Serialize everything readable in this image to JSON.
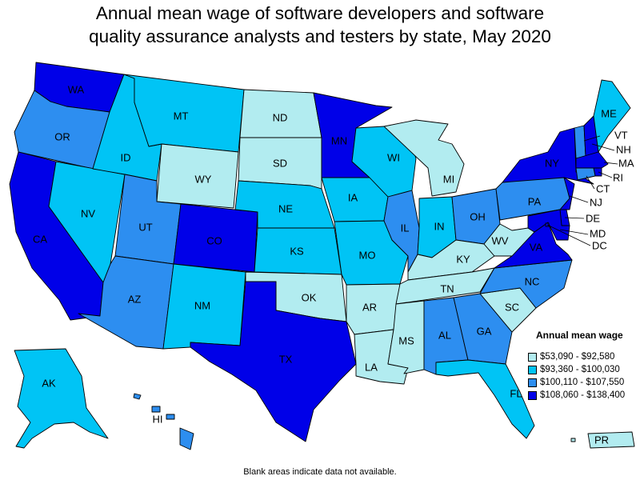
{
  "title": "Annual mean wage of software developers and software\nquality assurance analysts and testers by state, May 2020",
  "legend": {
    "title": "Annual mean wage",
    "items": [
      {
        "label": "$53,090 - $92,580",
        "color": "#b2ecf0"
      },
      {
        "label": "$93,360 - $100,030",
        "color": "#00c4f5"
      },
      {
        "label": "$100,110 - $107,550",
        "color": "#2d8ef0"
      },
      {
        "label": "$108,060 - $138,400",
        "color": "#0000e8"
      }
    ]
  },
  "footnote": "Blank areas indicate data not available.",
  "states": {
    "WA": 4,
    "OR": 3,
    "CA": 4,
    "NV": 2,
    "ID": 2,
    "MT": 2,
    "WY": 1,
    "UT": 3,
    "AZ": 3,
    "CO": 4,
    "NM": 2,
    "ND": 1,
    "SD": 1,
    "NE": 2,
    "KS": 2,
    "OK": 1,
    "TX": 4,
    "MN": 4,
    "IA": 2,
    "MO": 2,
    "AR": 1,
    "LA": 1,
    "WI": 2,
    "IL": 3,
    "MI": 1,
    "IN": 2,
    "OH": 3,
    "KY": 1,
    "TN": 1,
    "MS": 1,
    "AL": 3,
    "GA": 3,
    "FL": 2,
    "SC": 1,
    "NC": 3,
    "VA": 4,
    "WV": 1,
    "PA": 3,
    "NY": 4,
    "VT": 3,
    "NH": 4,
    "ME": 2,
    "MA": 4,
    "RI": 4,
    "CT": 3,
    "NJ": 4,
    "DE": 4,
    "MD": 4,
    "DC": 4,
    "AK": 2,
    "HI": 3,
    "PR": 1
  }
}
